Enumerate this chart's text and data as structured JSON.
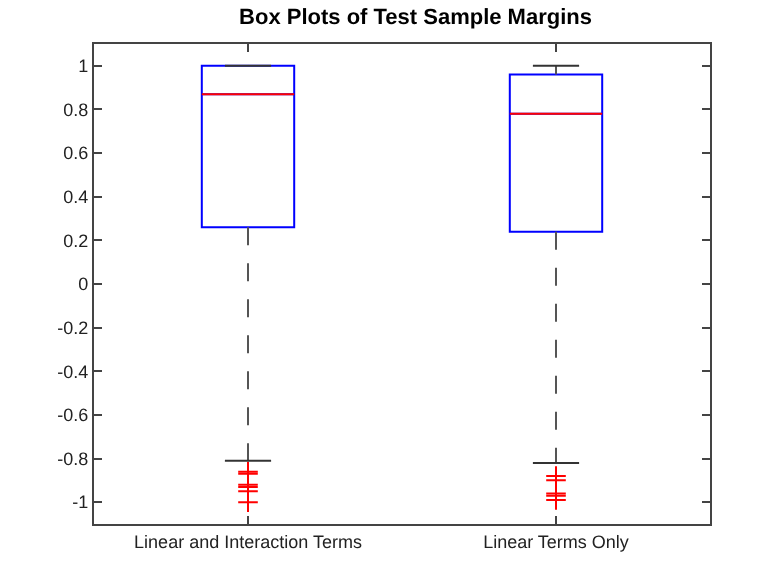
{
  "chart_data": {
    "type": "box",
    "title": "Box Plots of Test Sample Margins",
    "categories": [
      "Linear and Interaction Terms",
      "Linear Terms Only"
    ],
    "series": [
      {
        "color": "#0000ff",
        "boxes": [
          {
            "low": -0.81,
            "q1": 0.26,
            "median": 0.87,
            "q3": 1.0,
            "high": 1.0,
            "outliers": [
              -0.86,
              -0.87,
              -0.92,
              -0.93,
              -0.95,
              -1.0
            ]
          },
          {
            "low": -0.82,
            "q1": 0.24,
            "median": 0.78,
            "q3": 0.96,
            "high": 1.0,
            "outliers": [
              -0.88,
              -0.9,
              -0.96,
              -0.97,
              -0.99
            ]
          }
        ]
      }
    ],
    "ylim": [
      -1.1,
      1.1
    ],
    "yticks": [
      -1,
      -0.8,
      -0.6,
      -0.4,
      -0.2,
      0,
      0.2,
      0.4,
      0.6,
      0.8,
      1
    ],
    "grid": false,
    "marker": "cross"
  }
}
